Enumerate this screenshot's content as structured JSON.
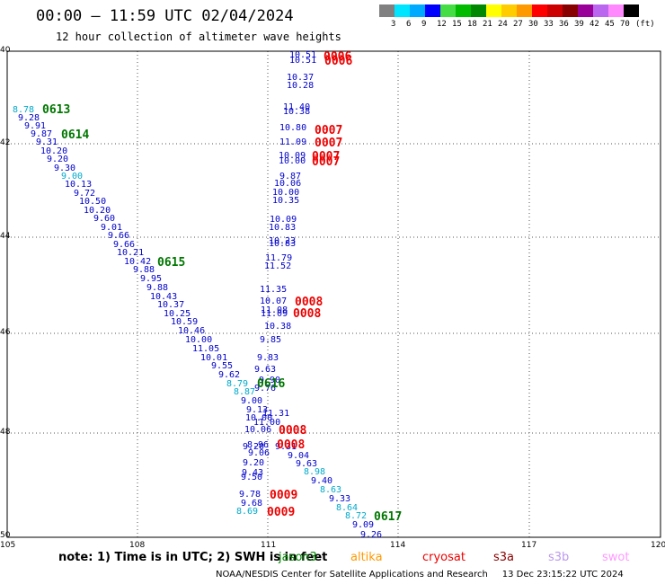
{
  "header": {
    "title": "00:00 — 11:59 UTC 02/04/2024",
    "subtitle": "12 hour collection of altimeter wave heights"
  },
  "legend": {
    "labels": [
      "3",
      "6",
      "9",
      "12",
      "15",
      "18",
      "21",
      "24",
      "27",
      "30",
      "33",
      "36",
      "39",
      "42",
      "45",
      "70",
      "(ft)"
    ],
    "colors": [
      "#808080",
      "#00e5ff",
      "#00aaff",
      "#0000ff",
      "#44dd44",
      "#00bb00",
      "#008800",
      "#ffff00",
      "#ffcc00",
      "#ff9900",
      "#ff0000",
      "#cc0000",
      "#880000",
      "#990099",
      "#bb66ee",
      "#ff88ff",
      "#000000"
    ]
  },
  "axes": {
    "x_ticks": [
      "105",
      "108",
      "111",
      "114",
      "117",
      "120"
    ],
    "y_ticks": [
      "40",
      "42",
      "44",
      "46",
      "48",
      "50"
    ]
  },
  "colors": {
    "text_blue": "#0000cc",
    "text_cyan": "#00aacc",
    "text_red": "#ee0000",
    "text_green": "#007700"
  },
  "passes": [
    "0613",
    "0614",
    "0615",
    "0616",
    "0617",
    "0006",
    "0006",
    "0007",
    "0007",
    "0007",
    "0007",
    "0008",
    "0008",
    "0008",
    "0008",
    "0009",
    "0009"
  ],
  "wave_heights": [
    "8.78",
    "9.28",
    "9.91",
    "9.87",
    "9.31",
    "10.20",
    "9.20",
    "9.30",
    "9.00",
    "10.13",
    "9.72",
    "10.50",
    "10.20",
    "9.60",
    "9.01",
    "9.66",
    "9.66",
    "10.21",
    "10.42",
    "9.88",
    "9.95",
    "9.88",
    "10.43",
    "10.37",
    "10.25",
    "10.59",
    "10.46",
    "10.00",
    "11.05",
    "10.01",
    "9.55",
    "9.62",
    "8.79",
    "8.87",
    "9.00",
    "9.13",
    "10.00",
    "11.00",
    "11.31",
    "10.06",
    "9.20",
    "9.31",
    "9.04",
    "8.96",
    "9.63",
    "9.06",
    "8.98",
    "9.20",
    "9.40",
    "9.43",
    "9.50",
    "8.63",
    "9.33",
    "9.78",
    "8.64",
    "9.68",
    "8.72",
    "8.69",
    "9.09",
    "9.26",
    "10.51",
    "10.51",
    "10.37",
    "10.28",
    "11.40",
    "10.38",
    "10.80",
    "11.09",
    "10.09",
    "10.00",
    "9.87",
    "10.06",
    "10.00",
    "10.35",
    "10.09",
    "10.83",
    "10.83",
    "10.23",
    "11.79",
    "11.52",
    "11.35",
    "10.07",
    "11.08",
    "11.09",
    "10.38",
    "9.85",
    "9.83",
    "9.63",
    "9.76",
    "9.90"
  ],
  "footer": {
    "note": "note:  1) Time is in UTC; 2) SWH is in feet",
    "satellites": [
      "jason3",
      "altika",
      "cryosat",
      "s3a",
      "s3b",
      "swot"
    ],
    "satellite_colors": [
      "#008800",
      "#ff9900",
      "#ee0000",
      "#880000",
      "#bb99ee",
      "#ff99ff"
    ],
    "credit": "NOAA/NESDIS Center for Satellite Applications and Research",
    "generated": "13 Dec 23:15:22 UTC 2024"
  }
}
